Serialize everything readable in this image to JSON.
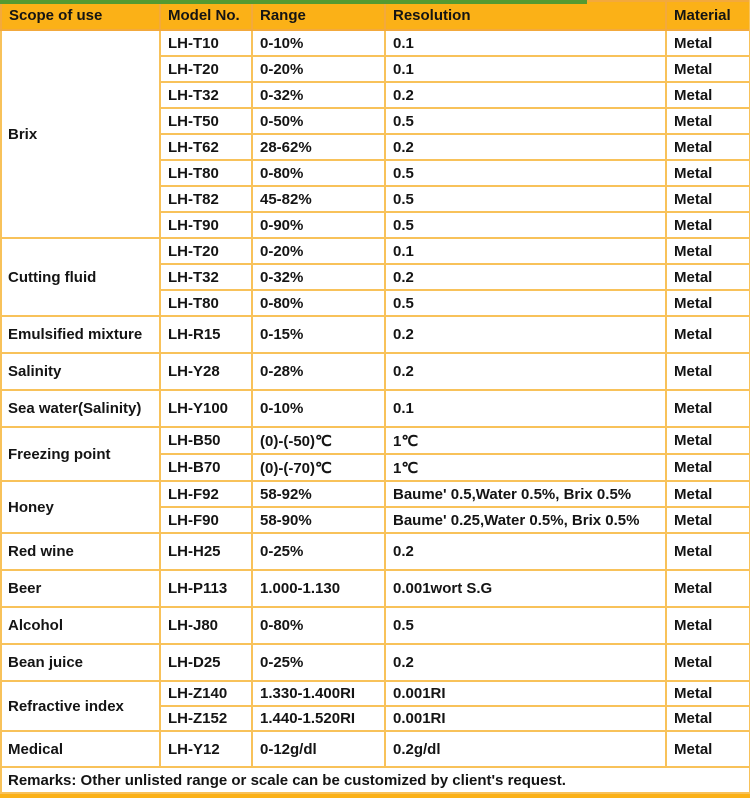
{
  "colors": {
    "header_bg": "#FBB117",
    "grid_border": "#F8C25A",
    "top_stripe_green": "#559A31",
    "bottom_bar": "#FBB117",
    "text": "#141414"
  },
  "table": {
    "headers": {
      "scope": "Scope of use",
      "model": "Model No.",
      "range": "Range",
      "resolution": "Resolution",
      "material": "Material"
    },
    "groups": [
      {
        "scope": "Brix",
        "rows": [
          {
            "model": "LH-T10",
            "range": "0-10%",
            "resolution": "0.1",
            "material": "Metal"
          },
          {
            "model": "LH-T20",
            "range": "0-20%",
            "resolution": "0.1",
            "material": "Metal"
          },
          {
            "model": "LH-T32",
            "range": "0-32%",
            "resolution": "0.2",
            "material": "Metal"
          },
          {
            "model": "LH-T50",
            "range": "0-50%",
            "resolution": "0.5",
            "material": "Metal"
          },
          {
            "model": "LH-T62",
            "range": "28-62%",
            "resolution": "0.2",
            "material": "Metal"
          },
          {
            "model": "LH-T80",
            "range": "0-80%",
            "resolution": "0.5",
            "material": "Metal"
          },
          {
            "model": "LH-T82",
            "range": "45-82%",
            "resolution": "0.5",
            "material": "Metal"
          },
          {
            "model": "LH-T90",
            "range": "0-90%",
            "resolution": "0.5",
            "material": "Metal"
          }
        ]
      },
      {
        "scope": "Cutting fluid",
        "rows": [
          {
            "model": "LH-T20",
            "range": "0-20%",
            "resolution": "0.1",
            "material": "Metal"
          },
          {
            "model": "LH-T32",
            "range": "0-32%",
            "resolution": "0.2",
            "material": "Metal"
          },
          {
            "model": "LH-T80",
            "range": "0-80%",
            "resolution": "0.5",
            "material": "Metal"
          }
        ]
      },
      {
        "scope": "Emulsified mixture",
        "rows": [
          {
            "model": "LH-R15",
            "range": "0-15%",
            "resolution": "0.2",
            "material": "Metal"
          }
        ]
      },
      {
        "scope": "Salinity",
        "rows": [
          {
            "model": "LH-Y28",
            "range": "0-28%",
            "resolution": "0.2",
            "material": "Metal"
          }
        ]
      },
      {
        "scope": "Sea water(Salinity)",
        "rows": [
          {
            "model": "LH-Y100",
            "range": "0-10%",
            "resolution": "0.1",
            "material": "Metal"
          }
        ]
      },
      {
        "scope": "Freezing point",
        "rows": [
          {
            "model": "LH-B50",
            "range": "(0)-(-50)℃",
            "resolution": "1℃",
            "material": "Metal"
          },
          {
            "model": "LH-B70",
            "range": "(0)-(-70)℃",
            "resolution": "1℃",
            "material": "Metal"
          }
        ]
      },
      {
        "scope": "Honey",
        "rows": [
          {
            "model": "LH-F92",
            "range": "58-92%",
            "resolution": "Baume' 0.5,Water 0.5%, Brix 0.5%",
            "material": "Metal"
          },
          {
            "model": "LH-F90",
            "range": "58-90%",
            "resolution": "Baume' 0.25,Water 0.5%, Brix 0.5%",
            "material": "Metal"
          }
        ]
      },
      {
        "scope": "Red wine",
        "rows": [
          {
            "model": "LH-H25",
            "range": "0-25%",
            "resolution": "0.2",
            "material": "Metal"
          }
        ]
      },
      {
        "scope": "Beer",
        "rows": [
          {
            "model": "LH-P113",
            "range": "1.000-1.130",
            "resolution": "0.001wort S.G",
            "material": "Metal"
          }
        ]
      },
      {
        "scope": "Alcohol",
        "rows": [
          {
            "model": "LH-J80",
            "range": "0-80%",
            "resolution": "0.5",
            "material": "Metal"
          }
        ]
      },
      {
        "scope": "Bean juice",
        "rows": [
          {
            "model": "LH-D25",
            "range": "0-25%",
            "resolution": "0.2",
            "material": "Metal"
          }
        ]
      },
      {
        "scope": "Refractive index",
        "rows": [
          {
            "model": "LH-Z140",
            "range": "1.330-1.400RI",
            "resolution": "0.001RI",
            "material": "Metal"
          },
          {
            "model": "LH-Z152",
            "range": "1.440-1.520RI",
            "resolution": "0.001RI",
            "material": "Metal"
          }
        ]
      },
      {
        "scope": "Medical",
        "rows": [
          {
            "model": "LH-Y12",
            "range": "0-12g/dl",
            "resolution": "0.2g/dl",
            "material": "Metal"
          }
        ]
      }
    ],
    "remarks": "Remarks: Other unlisted range or scale can be customized by client's request."
  }
}
